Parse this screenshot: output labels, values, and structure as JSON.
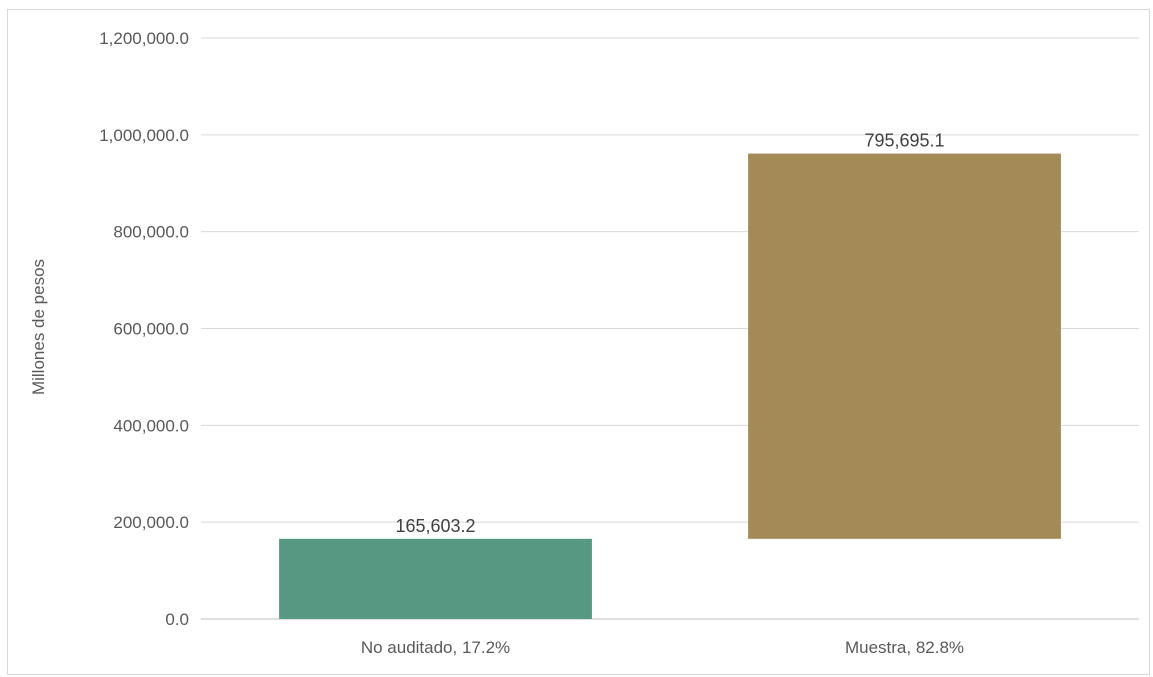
{
  "chart_data": {
    "type": "bar",
    "stacked": "waterfall",
    "categories": [
      "No auditado, 17.2%",
      "Muestra, 82.8%"
    ],
    "series": [
      {
        "values": [
          165603.2,
          795695.1
        ],
        "colors": [
          "#579882",
          "#A48A56"
        ]
      }
    ],
    "offsets": [
      0,
      165603.2
    ],
    "data_labels": [
      "165,603.2",
      "795,695.1"
    ],
    "ylabel": "Millones de pesos",
    "ylim": [
      0,
      1200000
    ],
    "yticks": [
      0,
      200000,
      400000,
      600000,
      800000,
      1000000,
      1200000
    ],
    "ytick_labels": [
      "0.0",
      "200,000.0",
      "400,000.0",
      "600,000.0",
      "800,000.0",
      "1,000,000.0",
      "1,200,000.0"
    ],
    "grid": true,
    "legend": "none"
  }
}
